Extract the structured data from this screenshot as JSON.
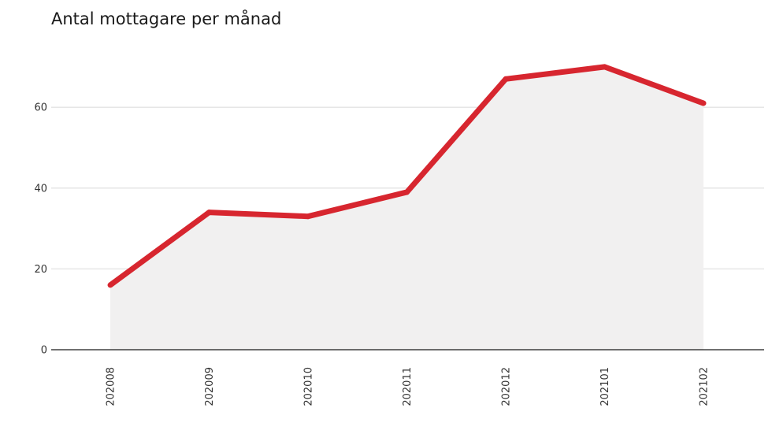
{
  "chart_data": {
    "type": "area",
    "title": "Antal mottagare per månad",
    "xlabel": "",
    "ylabel": "",
    "categories": [
      "202008",
      "202009",
      "202010",
      "202011",
      "202012",
      "202101",
      "202102"
    ],
    "values": [
      16,
      34,
      33,
      39,
      67,
      70,
      61
    ],
    "ylim": [
      0,
      80
    ],
    "yticks": [
      0,
      20,
      40,
      60
    ],
    "grid": true,
    "colors": {
      "line": "#d7262f",
      "area": "#f1f0f0",
      "grid": "#e6e6e6",
      "axis": "#1a1a1a"
    }
  }
}
